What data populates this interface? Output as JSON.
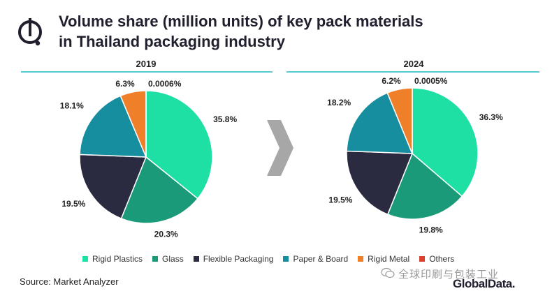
{
  "header": {
    "title_line1": "Volume share (million units) of key pack materials",
    "title_line2": "in Thailand packaging industry"
  },
  "chart_data": [
    {
      "type": "pie",
      "title": "2019",
      "categories": [
        "Rigid Plastics",
        "Glass",
        "Flexible Packaging",
        "Paper & Board",
        "Rigid Metal",
        "Others"
      ],
      "values": [
        35.8,
        20.3,
        19.5,
        18.1,
        6.3,
        0.0006
      ],
      "labels": [
        "35.8%",
        "20.3%",
        "19.5%",
        "18.1%",
        "6.3%",
        "0.0006%"
      ]
    },
    {
      "type": "pie",
      "title": "2024",
      "categories": [
        "Rigid Plastics",
        "Glass",
        "Flexible Packaging",
        "Paper & Board",
        "Rigid Metal",
        "Others"
      ],
      "values": [
        36.3,
        19.8,
        19.5,
        18.2,
        6.2,
        0.0005
      ],
      "labels": [
        "36.3%",
        "19.8%",
        "19.5%",
        "18.2%",
        "6.2%",
        "0.0005%"
      ]
    }
  ],
  "legend": [
    {
      "label": "Rigid Plastics",
      "color": "#1ee0a5"
    },
    {
      "label": "Glass",
      "color": "#1a9a78"
    },
    {
      "label": "Flexible Packaging",
      "color": "#2a2a40"
    },
    {
      "label": "Paper & Board",
      "color": "#168ea0"
    },
    {
      "label": "Rigid Metal",
      "color": "#f07f2a"
    },
    {
      "label": "Others",
      "color": "#d9432e"
    }
  ],
  "footer": {
    "source": "Source: Market Analyzer",
    "watermark": "全球印刷与包装工业",
    "brand": "GlobalData."
  }
}
